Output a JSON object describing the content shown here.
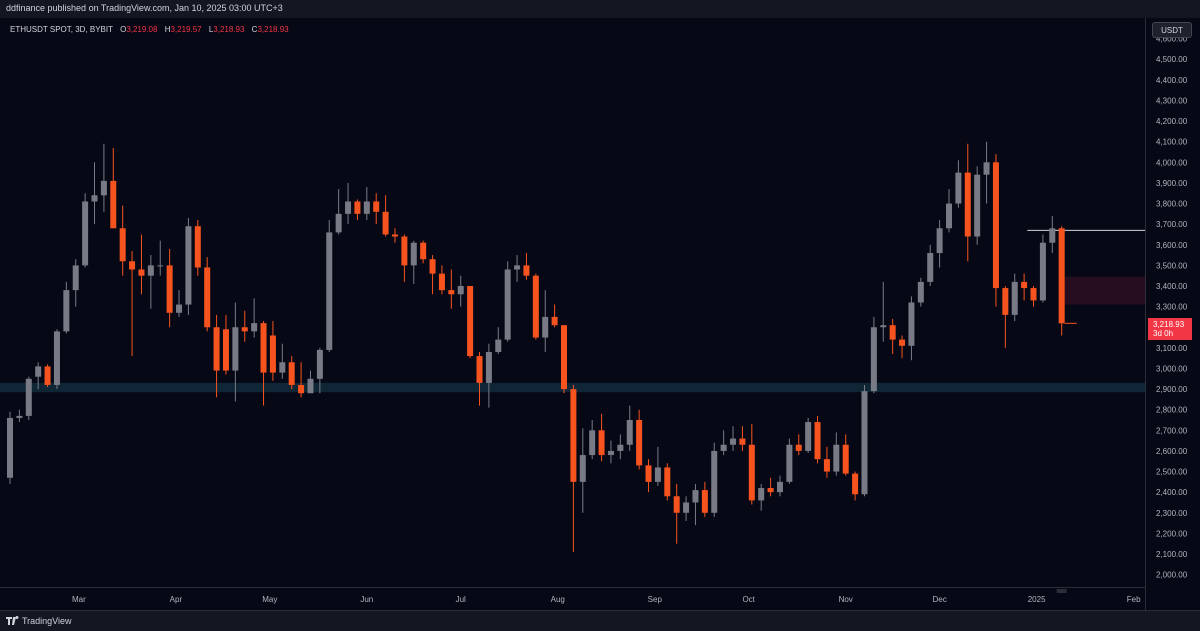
{
  "header": {
    "publisher_line": "ddfinance published on TradingView.com, Jan 10, 2025 03:00 UTC+3"
  },
  "legend": {
    "symbol": "ETHUSDT SPOT, 3D, BYBIT",
    "open_key": "O",
    "open_val": "3,219.08",
    "high_key": "H",
    "high_val": "3,219.57",
    "low_key": "L",
    "low_val": "3,218.93",
    "close_key": "C",
    "close_val": "3,218.93"
  },
  "price_axis": {
    "currency_button": "USDT"
  },
  "last_price": {
    "value": "3,218.93",
    "countdown": "3d 0h"
  },
  "footer": {
    "brand": "TradingView"
  },
  "colors": {
    "up": "#787b86",
    "down": "#f7531f",
    "background": "#070816",
    "zone_support": "#0f2a3a",
    "zone_resistance": "#2a0e20"
  },
  "chart_data": {
    "type": "candlestick",
    "y_ticks": [
      "2,000.00",
      "2,100.00",
      "2,200.00",
      "2,300.00",
      "2,400.00",
      "2,500.00",
      "2,600.00",
      "2,700.00",
      "2,800.00",
      "2,900.00",
      "3,000.00",
      "3,100.00",
      "3,200.00",
      "3,300.00",
      "3,400.00",
      "3,500.00",
      "3,600.00",
      "3,700.00",
      "3,800.00",
      "3,900.00",
      "4,000.00",
      "4,100.00",
      "4,200.00",
      "4,300.00",
      "4,400.00",
      "4,500.00",
      "4,600.00"
    ],
    "y_range": [
      1940,
      4700
    ],
    "x_labels": [
      "Mar",
      "Apr",
      "May",
      "Jun",
      "Jul",
      "Aug",
      "Sep",
      "Oct",
      "Nov",
      "Dec",
      "2025",
      "Feb"
    ],
    "x_label_dates": [
      "2024-03-01",
      "2024-04-01",
      "2024-05-01",
      "2024-06-01",
      "2024-07-01",
      "2024-08-01",
      "2024-09-01",
      "2024-10-01",
      "2024-11-01",
      "2024-12-01",
      "2025-01-01",
      "2025-02-01"
    ],
    "zones": [
      {
        "from": 2885,
        "to": 2930
      },
      {
        "from": 3310,
        "to": 3445,
        "right_of": "2025-01-01"
      }
    ],
    "level": {
      "price": 3670,
      "from": "2024-12-29"
    },
    "candles": [
      {
        "d": "2024-02-08",
        "o": 2470,
        "h": 2790,
        "l": 2440,
        "c": 2760
      },
      {
        "d": "2024-02-11",
        "o": 2760,
        "h": 2800,
        "l": 2740,
        "c": 2770
      },
      {
        "d": "2024-02-14",
        "o": 2770,
        "h": 2960,
        "l": 2750,
        "c": 2950
      },
      {
        "d": "2024-02-17",
        "o": 2960,
        "h": 3030,
        "l": 2900,
        "c": 3010
      },
      {
        "d": "2024-02-20",
        "o": 3010,
        "h": 3020,
        "l": 2910,
        "c": 2920
      },
      {
        "d": "2024-02-23",
        "o": 2920,
        "h": 3190,
        "l": 2900,
        "c": 3180
      },
      {
        "d": "2024-02-26",
        "o": 3180,
        "h": 3420,
        "l": 3170,
        "c": 3380
      },
      {
        "d": "2024-02-29",
        "o": 3380,
        "h": 3530,
        "l": 3300,
        "c": 3500
      },
      {
        "d": "2024-03-03",
        "o": 3500,
        "h": 3850,
        "l": 3490,
        "c": 3810
      },
      {
        "d": "2024-03-06",
        "o": 3810,
        "h": 4000,
        "l": 3700,
        "c": 3840
      },
      {
        "d": "2024-03-09",
        "o": 3840,
        "h": 4090,
        "l": 3760,
        "c": 3910
      },
      {
        "d": "2024-03-12",
        "o": 3910,
        "h": 4070,
        "l": 3700,
        "c": 3680
      },
      {
        "d": "2024-03-15",
        "o": 3680,
        "h": 3790,
        "l": 3450,
        "c": 3520
      },
      {
        "d": "2024-03-18",
        "o": 3520,
        "h": 3570,
        "l": 3060,
        "c": 3480
      },
      {
        "d": "2024-03-21",
        "o": 3480,
        "h": 3650,
        "l": 3360,
        "c": 3450
      },
      {
        "d": "2024-03-24",
        "o": 3450,
        "h": 3550,
        "l": 3290,
        "c": 3500
      },
      {
        "d": "2024-03-27",
        "o": 3500,
        "h": 3620,
        "l": 3450,
        "c": 3500
      },
      {
        "d": "2024-03-30",
        "o": 3500,
        "h": 3580,
        "l": 3200,
        "c": 3270
      },
      {
        "d": "2024-04-02",
        "o": 3270,
        "h": 3380,
        "l": 3250,
        "c": 3310
      },
      {
        "d": "2024-04-05",
        "o": 3310,
        "h": 3730,
        "l": 3260,
        "c": 3690
      },
      {
        "d": "2024-04-08",
        "o": 3690,
        "h": 3720,
        "l": 3450,
        "c": 3490
      },
      {
        "d": "2024-04-11",
        "o": 3490,
        "h": 3540,
        "l": 3180,
        "c": 3200
      },
      {
        "d": "2024-04-14",
        "o": 3200,
        "h": 3260,
        "l": 2860,
        "c": 2990
      },
      {
        "d": "2024-04-17",
        "o": 3190,
        "h": 3260,
        "l": 2970,
        "c": 2990
      },
      {
        "d": "2024-04-20",
        "o": 2990,
        "h": 3320,
        "l": 2840,
        "c": 3200
      },
      {
        "d": "2024-04-23",
        "o": 3200,
        "h": 3280,
        "l": 3130,
        "c": 3180
      },
      {
        "d": "2024-04-26",
        "o": 3180,
        "h": 3340,
        "l": 3150,
        "c": 3220
      },
      {
        "d": "2024-04-29",
        "o": 3220,
        "h": 3230,
        "l": 2820,
        "c": 2980
      },
      {
        "d": "2024-05-02",
        "o": 3160,
        "h": 3230,
        "l": 2940,
        "c": 2980
      },
      {
        "d": "2024-05-05",
        "o": 2980,
        "h": 3120,
        "l": 2950,
        "c": 3030
      },
      {
        "d": "2024-05-08",
        "o": 3030,
        "h": 3060,
        "l": 2900,
        "c": 2920
      },
      {
        "d": "2024-05-11",
        "o": 2920,
        "h": 3030,
        "l": 2860,
        "c": 2880
      },
      {
        "d": "2024-05-14",
        "o": 2880,
        "h": 2990,
        "l": 2880,
        "c": 2950
      },
      {
        "d": "2024-05-17",
        "o": 2950,
        "h": 3100,
        "l": 2880,
        "c": 3090
      },
      {
        "d": "2024-05-20",
        "o": 3090,
        "h": 3720,
        "l": 3080,
        "c": 3660
      },
      {
        "d": "2024-05-23",
        "o": 3660,
        "h": 3870,
        "l": 3650,
        "c": 3750
      },
      {
        "d": "2024-05-26",
        "o": 3750,
        "h": 3900,
        "l": 3700,
        "c": 3810
      },
      {
        "d": "2024-05-29",
        "o": 3810,
        "h": 3820,
        "l": 3720,
        "c": 3750
      },
      {
        "d": "2024-06-01",
        "o": 3750,
        "h": 3880,
        "l": 3720,
        "c": 3810
      },
      {
        "d": "2024-06-04",
        "o": 3810,
        "h": 3850,
        "l": 3700,
        "c": 3760
      },
      {
        "d": "2024-06-07",
        "o": 3760,
        "h": 3840,
        "l": 3640,
        "c": 3650
      },
      {
        "d": "2024-06-10",
        "o": 3650,
        "h": 3680,
        "l": 3610,
        "c": 3640
      },
      {
        "d": "2024-06-13",
        "o": 3640,
        "h": 3650,
        "l": 3420,
        "c": 3500
      },
      {
        "d": "2024-06-16",
        "o": 3500,
        "h": 3620,
        "l": 3410,
        "c": 3610
      },
      {
        "d": "2024-06-19",
        "o": 3610,
        "h": 3620,
        "l": 3510,
        "c": 3530
      },
      {
        "d": "2024-06-22",
        "o": 3530,
        "h": 3550,
        "l": 3360,
        "c": 3460
      },
      {
        "d": "2024-06-25",
        "o": 3460,
        "h": 3500,
        "l": 3360,
        "c": 3380
      },
      {
        "d": "2024-06-28",
        "o": 3380,
        "h": 3480,
        "l": 3290,
        "c": 3360
      },
      {
        "d": "2024-07-01",
        "o": 3360,
        "h": 3450,
        "l": 3300,
        "c": 3400
      },
      {
        "d": "2024-07-04",
        "o": 3400,
        "h": 3400,
        "l": 3050,
        "c": 3060
      },
      {
        "d": "2024-07-07",
        "o": 3060,
        "h": 3080,
        "l": 2820,
        "c": 2930
      },
      {
        "d": "2024-07-10",
        "o": 2930,
        "h": 3120,
        "l": 2810,
        "c": 3080
      },
      {
        "d": "2024-07-13",
        "o": 3080,
        "h": 3200,
        "l": 3070,
        "c": 3140
      },
      {
        "d": "2024-07-16",
        "o": 3140,
        "h": 3520,
        "l": 3130,
        "c": 3480
      },
      {
        "d": "2024-07-19",
        "o": 3480,
        "h": 3550,
        "l": 3420,
        "c": 3500
      },
      {
        "d": "2024-07-22",
        "o": 3500,
        "h": 3560,
        "l": 3430,
        "c": 3450
      },
      {
        "d": "2024-07-25",
        "o": 3450,
        "h": 3460,
        "l": 3140,
        "c": 3150
      },
      {
        "d": "2024-07-28",
        "o": 3150,
        "h": 3380,
        "l": 3080,
        "c": 3250
      },
      {
        "d": "2024-07-31",
        "o": 3250,
        "h": 3310,
        "l": 3200,
        "c": 3210
      },
      {
        "d": "2024-08-03",
        "o": 3210,
        "h": 3210,
        "l": 2880,
        "c": 2900
      },
      {
        "d": "2024-08-06",
        "o": 2900,
        "h": 2920,
        "l": 2110,
        "c": 2450
      },
      {
        "d": "2024-08-09",
        "o": 2450,
        "h": 2710,
        "l": 2300,
        "c": 2580
      },
      {
        "d": "2024-08-12",
        "o": 2580,
        "h": 2750,
        "l": 2560,
        "c": 2700
      },
      {
        "d": "2024-08-15",
        "o": 2700,
        "h": 2780,
        "l": 2550,
        "c": 2580
      },
      {
        "d": "2024-08-18",
        "o": 2580,
        "h": 2650,
        "l": 2540,
        "c": 2600
      },
      {
        "d": "2024-08-21",
        "o": 2600,
        "h": 2680,
        "l": 2560,
        "c": 2630
      },
      {
        "d": "2024-08-24",
        "o": 2630,
        "h": 2820,
        "l": 2600,
        "c": 2750
      },
      {
        "d": "2024-08-27",
        "o": 2750,
        "h": 2800,
        "l": 2510,
        "c": 2530
      },
      {
        "d": "2024-08-30",
        "o": 2530,
        "h": 2560,
        "l": 2400,
        "c": 2450
      },
      {
        "d": "2024-09-02",
        "o": 2450,
        "h": 2620,
        "l": 2430,
        "c": 2520
      },
      {
        "d": "2024-09-05",
        "o": 2520,
        "h": 2540,
        "l": 2360,
        "c": 2380
      },
      {
        "d": "2024-09-08",
        "o": 2380,
        "h": 2440,
        "l": 2150,
        "c": 2300
      },
      {
        "d": "2024-09-11",
        "o": 2300,
        "h": 2380,
        "l": 2260,
        "c": 2350
      },
      {
        "d": "2024-09-14",
        "o": 2350,
        "h": 2440,
        "l": 2240,
        "c": 2410
      },
      {
        "d": "2024-09-17",
        "o": 2410,
        "h": 2450,
        "l": 2280,
        "c": 2300
      },
      {
        "d": "2024-09-20",
        "o": 2300,
        "h": 2640,
        "l": 2280,
        "c": 2600
      },
      {
        "d": "2024-09-23",
        "o": 2600,
        "h": 2700,
        "l": 2580,
        "c": 2630
      },
      {
        "d": "2024-09-26",
        "o": 2630,
        "h": 2720,
        "l": 2600,
        "c": 2660
      },
      {
        "d": "2024-09-29",
        "o": 2660,
        "h": 2720,
        "l": 2600,
        "c": 2630
      },
      {
        "d": "2024-10-02",
        "o": 2630,
        "h": 2730,
        "l": 2340,
        "c": 2360
      },
      {
        "d": "2024-10-05",
        "o": 2360,
        "h": 2440,
        "l": 2310,
        "c": 2420
      },
      {
        "d": "2024-10-08",
        "o": 2420,
        "h": 2470,
        "l": 2380,
        "c": 2400
      },
      {
        "d": "2024-10-11",
        "o": 2400,
        "h": 2480,
        "l": 2380,
        "c": 2450
      },
      {
        "d": "2024-10-14",
        "o": 2450,
        "h": 2660,
        "l": 2440,
        "c": 2630
      },
      {
        "d": "2024-10-17",
        "o": 2630,
        "h": 2680,
        "l": 2580,
        "c": 2600
      },
      {
        "d": "2024-10-20",
        "o": 2600,
        "h": 2760,
        "l": 2590,
        "c": 2740
      },
      {
        "d": "2024-10-23",
        "o": 2740,
        "h": 2770,
        "l": 2540,
        "c": 2560
      },
      {
        "d": "2024-10-26",
        "o": 2560,
        "h": 2620,
        "l": 2470,
        "c": 2500
      },
      {
        "d": "2024-10-29",
        "o": 2500,
        "h": 2690,
        "l": 2480,
        "c": 2630
      },
      {
        "d": "2024-11-01",
        "o": 2630,
        "h": 2680,
        "l": 2480,
        "c": 2490
      },
      {
        "d": "2024-11-04",
        "o": 2490,
        "h": 2500,
        "l": 2360,
        "c": 2390
      },
      {
        "d": "2024-11-07",
        "o": 2390,
        "h": 2920,
        "l": 2380,
        "c": 2890
      },
      {
        "d": "2024-11-10",
        "o": 2890,
        "h": 3250,
        "l": 2880,
        "c": 3200
      },
      {
        "d": "2024-11-13",
        "o": 3200,
        "h": 3420,
        "l": 3130,
        "c": 3210
      },
      {
        "d": "2024-11-16",
        "o": 3210,
        "h": 3240,
        "l": 3070,
        "c": 3140
      },
      {
        "d": "2024-11-19",
        "o": 3140,
        "h": 3160,
        "l": 3050,
        "c": 3110
      },
      {
        "d": "2024-11-22",
        "o": 3110,
        "h": 3350,
        "l": 3040,
        "c": 3320
      },
      {
        "d": "2024-11-25",
        "o": 3320,
        "h": 3440,
        "l": 3300,
        "c": 3420
      },
      {
        "d": "2024-11-28",
        "o": 3420,
        "h": 3600,
        "l": 3400,
        "c": 3560
      },
      {
        "d": "2024-12-01",
        "o": 3560,
        "h": 3720,
        "l": 3490,
        "c": 3680
      },
      {
        "d": "2024-12-04",
        "o": 3680,
        "h": 3870,
        "l": 3660,
        "c": 3800
      },
      {
        "d": "2024-12-07",
        "o": 3800,
        "h": 4010,
        "l": 3780,
        "c": 3950
      },
      {
        "d": "2024-12-10",
        "o": 3950,
        "h": 4090,
        "l": 3520,
        "c": 3640
      },
      {
        "d": "2024-12-13",
        "o": 3640,
        "h": 3980,
        "l": 3600,
        "c": 3940
      },
      {
        "d": "2024-12-16",
        "o": 3940,
        "h": 4100,
        "l": 3800,
        "c": 4000
      },
      {
        "d": "2024-12-19",
        "o": 4000,
        "h": 4040,
        "l": 3300,
        "c": 3390
      },
      {
        "d": "2024-12-22",
        "o": 3390,
        "h": 3400,
        "l": 3100,
        "c": 3260
      },
      {
        "d": "2024-12-25",
        "o": 3260,
        "h": 3460,
        "l": 3230,
        "c": 3420
      },
      {
        "d": "2024-12-28",
        "o": 3420,
        "h": 3460,
        "l": 3330,
        "c": 3390
      },
      {
        "d": "2024-12-31",
        "o": 3390,
        "h": 3400,
        "l": 3300,
        "c": 3330
      },
      {
        "d": "2025-01-03",
        "o": 3330,
        "h": 3650,
        "l": 3320,
        "c": 3610
      },
      {
        "d": "2025-01-06",
        "o": 3610,
        "h": 3740,
        "l": 3560,
        "c": 3680
      },
      {
        "d": "2025-01-09",
        "o": 3680,
        "h": 3690,
        "l": 3160,
        "c": 3219
      }
    ]
  }
}
